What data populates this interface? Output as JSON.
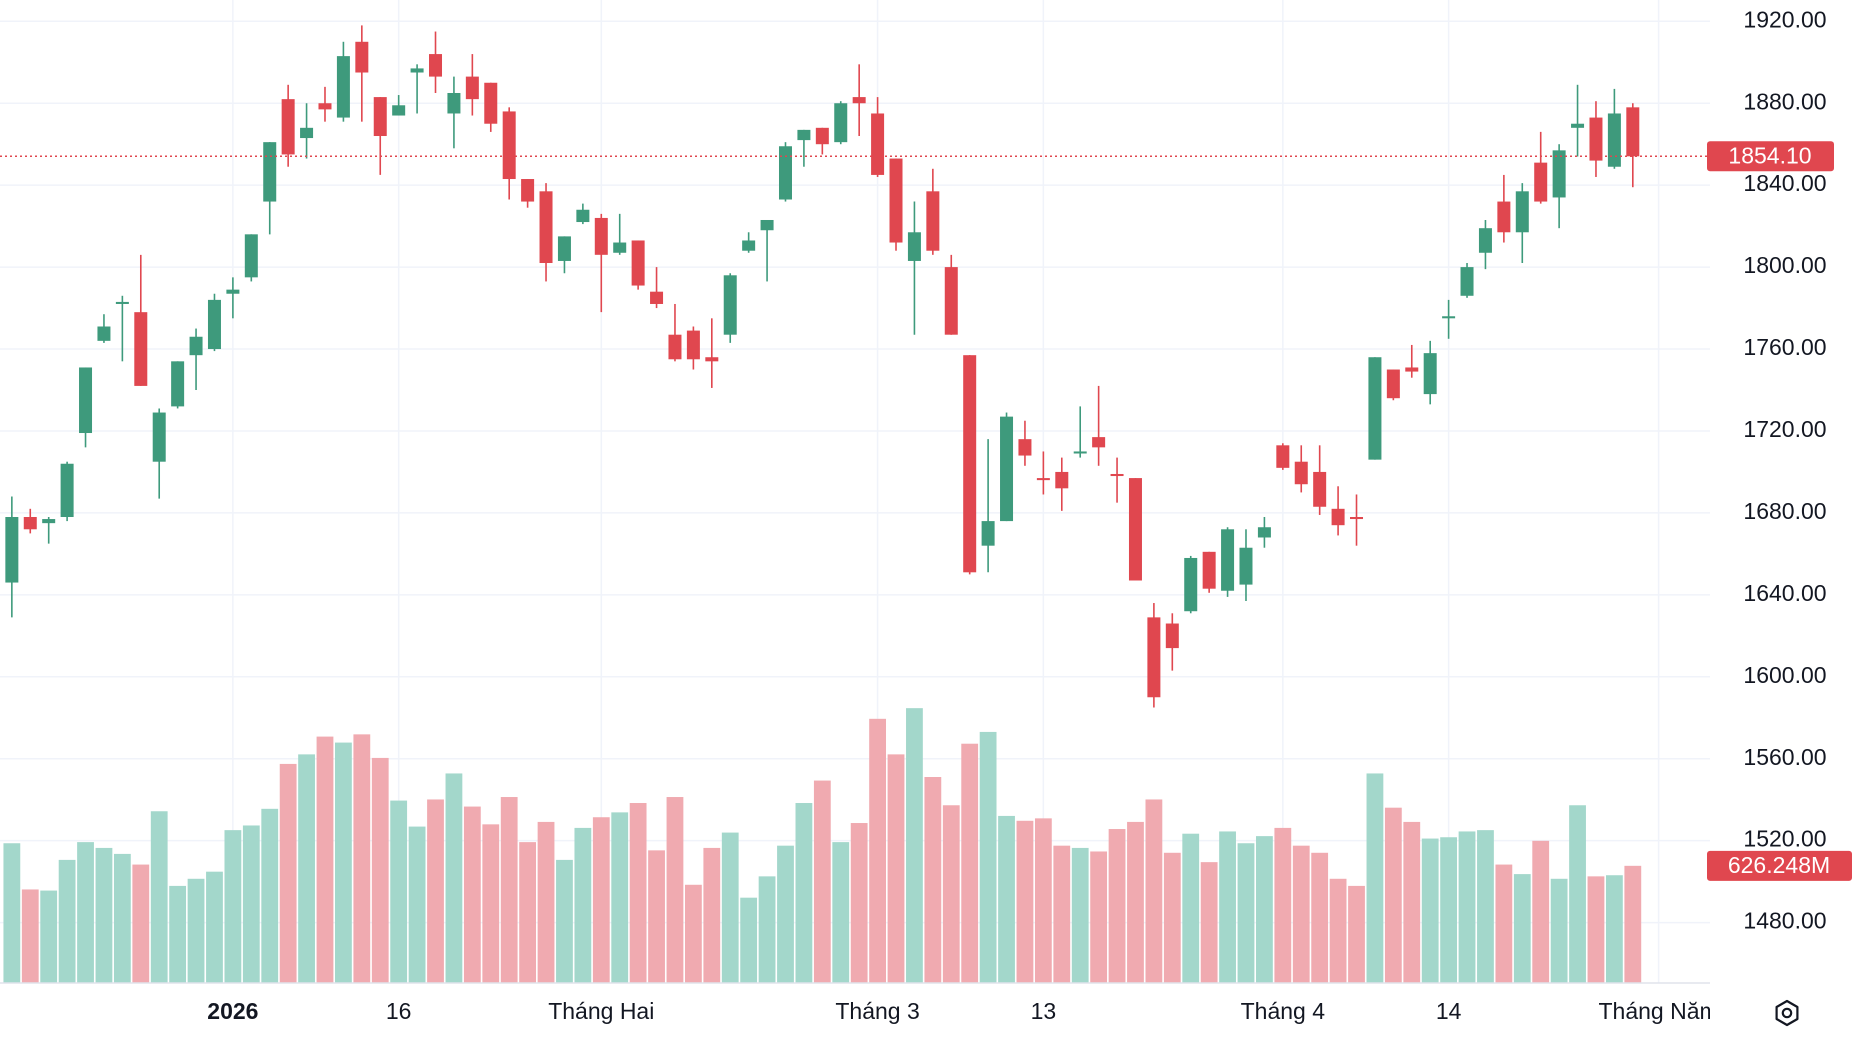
{
  "chart_data": {
    "type": "candlestick",
    "up_color": "#3e9a7c",
    "down_color": "#e0474f",
    "up_volume_color": "#a3d7cb",
    "down_volume_color": "#f0aab0",
    "ylim": [
      1450.5,
      1930.4
    ],
    "yticks": [
      {
        "value": 1920,
        "label": "1920.00"
      },
      {
        "value": 1880,
        "label": "1880.00"
      },
      {
        "value": 1840,
        "label": "1840.00"
      },
      {
        "value": 1800,
        "label": "1800.00"
      },
      {
        "value": 1760,
        "label": "1760.00"
      },
      {
        "value": 1720,
        "label": "1720.00"
      },
      {
        "value": 1680,
        "label": "1680.00"
      },
      {
        "value": 1640,
        "label": "1640.00"
      },
      {
        "value": 1600,
        "label": "1600.00"
      },
      {
        "value": 1560,
        "label": "1560.00"
      },
      {
        "value": 1520,
        "label": "1520.00"
      },
      {
        "value": 1480,
        "label": "1480.00"
      }
    ],
    "xticks": [
      {
        "value": 12,
        "label": "2026"
      },
      {
        "value": 21,
        "label": "16"
      },
      {
        "value": 32,
        "label": "Tháng Hai"
      },
      {
        "value": 47,
        "label": "Tháng 3"
      },
      {
        "value": 56,
        "label": "13"
      },
      {
        "value": 69,
        "label": "Tháng 4"
      },
      {
        "value": 78,
        "label": "14"
      },
      {
        "value": 89.4,
        "label": "Tháng Năm"
      }
    ],
    "grid": true,
    "volume_ylim": [
      0,
      5254
    ],
    "open": [
      1646,
      1678,
      1675,
      1678,
      1719,
      1764,
      1782,
      1778,
      1705,
      1732,
      1757,
      1760,
      1787,
      1795,
      1832,
      1882,
      1863,
      1880,
      1873,
      1910,
      1883,
      1874,
      1895,
      1904,
      1875,
      1893,
      1890,
      1876,
      1843,
      1837,
      1803,
      1822,
      1824,
      1807,
      1813,
      1788,
      1767,
      1769,
      1756,
      1767,
      1808,
      1818,
      1833,
      1862,
      1868,
      1861,
      1883,
      1875,
      1853,
      1803,
      1837,
      1800,
      1757,
      1664,
      1676,
      1716,
      1697,
      1700,
      1709,
      1717,
      1699,
      1697,
      1629,
      1626,
      1632,
      1661,
      1642,
      1645,
      1668,
      1713,
      1705,
      1700,
      1682,
      1678,
      1706,
      1750,
      1751,
      1738,
      1775,
      1786,
      1807,
      1832,
      1817,
      1851,
      1834,
      1868,
      1873,
      1849,
      1878
    ],
    "high": [
      1688,
      1682,
      1678,
      1705,
      1751,
      1777,
      1786,
      1806,
      1731,
      1754,
      1770,
      1787,
      1795,
      1816,
      1861,
      1889,
      1880,
      1888,
      1910,
      1918,
      1883,
      1884,
      1899,
      1915,
      1893,
      1904,
      1890,
      1878,
      1843,
      1841,
      1815,
      1831,
      1826,
      1826,
      1813,
      1800,
      1782,
      1771,
      1775,
      1797,
      1817,
      1823,
      1861,
      1867,
      1868,
      1881,
      1899,
      1883,
      1853,
      1832,
      1848,
      1806,
      1757,
      1716,
      1729,
      1725,
      1710,
      1707,
      1732,
      1742,
      1707,
      1697,
      1636,
      1631,
      1659,
      1661,
      1673,
      1672,
      1678,
      1714,
      1713,
      1713,
      1693,
      1689,
      1756,
      1750,
      1762,
      1764,
      1784,
      1802,
      1823,
      1845,
      1841,
      1866,
      1860,
      1889,
      1881,
      1887,
      1880
    ],
    "low": [
      1629,
      1670,
      1665,
      1676,
      1712,
      1763,
      1754,
      1742,
      1687,
      1731,
      1740,
      1759,
      1775,
      1793,
      1816,
      1849,
      1853,
      1871,
      1871,
      1871,
      1845,
      1874,
      1875,
      1885,
      1858,
      1874,
      1866,
      1833,
      1829,
      1793,
      1797,
      1821,
      1778,
      1806,
      1789,
      1780,
      1754,
      1750,
      1741,
      1763,
      1807,
      1793,
      1832,
      1849,
      1855,
      1860,
      1864,
      1844,
      1808,
      1767,
      1806,
      1767,
      1650,
      1651,
      1676,
      1703,
      1689,
      1681,
      1707,
      1703,
      1685,
      1647,
      1585,
      1603,
      1631,
      1641,
      1639,
      1637,
      1663,
      1701,
      1690,
      1679,
      1669,
      1664,
      1706,
      1735,
      1746,
      1733,
      1765,
      1785,
      1799,
      1812,
      1802,
      1831,
      1819,
      1854,
      1844,
      1848,
      1839
    ],
    "close": [
      1678,
      1672,
      1677,
      1704,
      1751,
      1771,
      1783,
      1742,
      1729,
      1754,
      1766,
      1784,
      1789,
      1816,
      1861,
      1855,
      1868,
      1877,
      1903,
      1895,
      1864,
      1879,
      1897,
      1893,
      1885,
      1882,
      1870,
      1843,
      1832,
      1802,
      1815,
      1828,
      1806,
      1812,
      1791,
      1782,
      1755,
      1755,
      1754,
      1796,
      1813,
      1823,
      1859,
      1867,
      1860,
      1880,
      1880,
      1845,
      1812,
      1817,
      1808,
      1767,
      1651,
      1676,
      1727,
      1708,
      1696,
      1692,
      1710,
      1712,
      1698,
      1647,
      1590,
      1614,
      1658,
      1643,
      1672,
      1663,
      1673,
      1702,
      1694,
      1683,
      1674,
      1677,
      1756,
      1736,
      1749,
      1758,
      1776,
      1800,
      1819,
      1817,
      1837,
      1832,
      1857,
      1870,
      1852,
      1875,
      1854.1
    ],
    "volume": [
      747,
      500,
      494,
      658,
      753,
      722,
      690,
      633,
      918,
      519,
      557,
      595,
      817,
      842,
      931,
      1171,
      1222,
      1317,
      1285,
      1329,
      1203,
      975,
      836,
      981,
      1120,
      943,
      848,
      994,
      753,
      861,
      658,
      829,
      886,
      912,
      962,
      709,
      994,
      525,
      722,
      804,
      456,
      570,
      734,
      962,
      1082,
      753,
      855,
      1412,
      1222,
      1469,
      1101,
      950,
      1279,
      1342,
      893,
      867,
      880,
      734,
      722,
      703,
      823,
      861,
      981,
      696,
      798,
      646,
      810,
      747,
      785,
      829,
      734,
      696,
      557,
      519,
      1120,
      937,
      861,
      772,
      779,
      810,
      817,
      633,
      582,
      760,
      557,
      950,
      570,
      576,
      626.248
    ],
    "last_close_label": "1854.10",
    "last_volume_label": "626.248M"
  }
}
